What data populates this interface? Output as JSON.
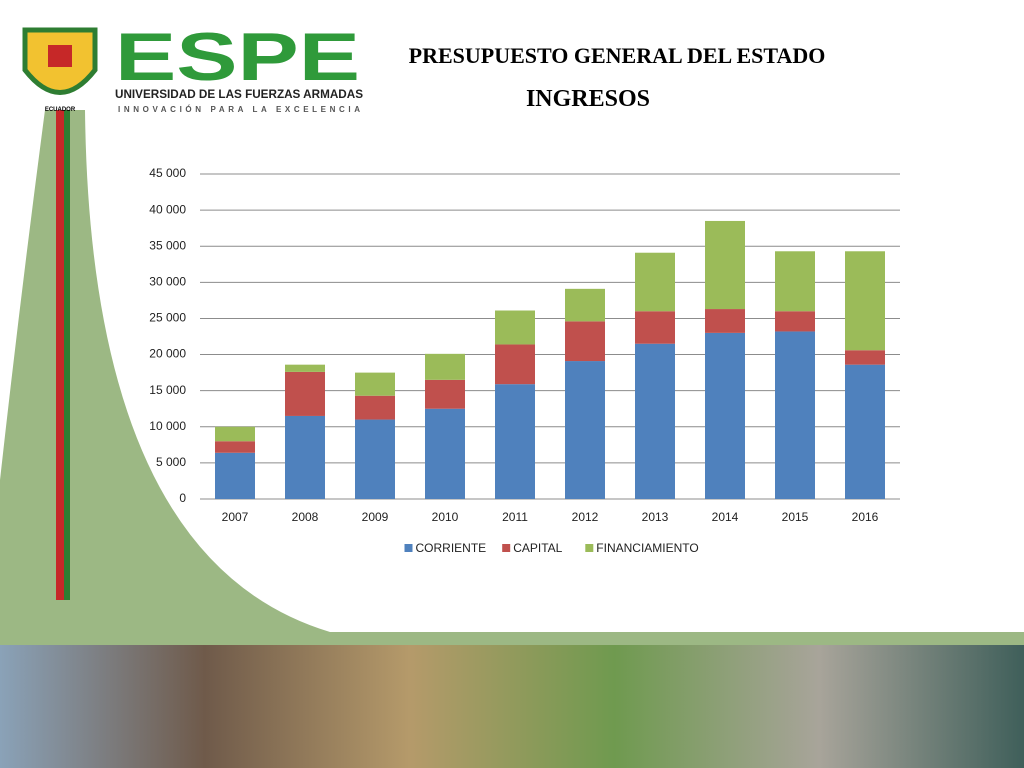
{
  "header": {
    "logo_text": "ESPE",
    "university": "UNIVERSIDAD DE LAS FUERZAS ARMADAS",
    "motto": "INNOVACIÓN PARA LA EXCELENCIA",
    "country": "ECUADOR"
  },
  "chart_data": {
    "type": "stacked_bar",
    "title": "PRESUPUESTO GENERAL DEL ESTADO",
    "subtitle": "INGRESOS",
    "categories": [
      "2007",
      "2008",
      "2009",
      "2010",
      "2011",
      "2012",
      "2013",
      "2014",
      "2015",
      "2016"
    ],
    "series": [
      {
        "name": "CORRIENTE",
        "color": "#4f81bd",
        "values": [
          6400,
          11500,
          11000,
          12500,
          15900,
          19100,
          21500,
          23000,
          23200,
          18600
        ]
      },
      {
        "name": "CAPITAL",
        "color": "#c0504d",
        "values": [
          1600,
          6100,
          3300,
          4000,
          5500,
          5500,
          4500,
          3300,
          2800,
          2000
        ]
      },
      {
        "name": "FINANCIAMIENTO",
        "color": "#9bbb59",
        "values": [
          2000,
          1000,
          3200,
          3600,
          4700,
          4500,
          8100,
          12200,
          8300,
          13700
        ]
      }
    ],
    "ylim": [
      0,
      45000
    ],
    "yticks": [
      0,
      {
        "value": 5000,
        "label": "5 000"
      },
      {
        "value": 10000,
        "label": "10 000"
      },
      {
        "value": 15000,
        "label": "15 000"
      },
      {
        "value": 20000,
        "label": "20 000"
      },
      {
        "value": 25000,
        "label": "25 000"
      },
      {
        "value": 30000,
        "label": "30 000"
      },
      {
        "value": 35000,
        "label": "35 000"
      },
      {
        "value": 40000,
        "label": "40 000"
      },
      {
        "value": 45000,
        "label": "45 000"
      }
    ],
    "grid": true,
    "legend": "bottom"
  }
}
